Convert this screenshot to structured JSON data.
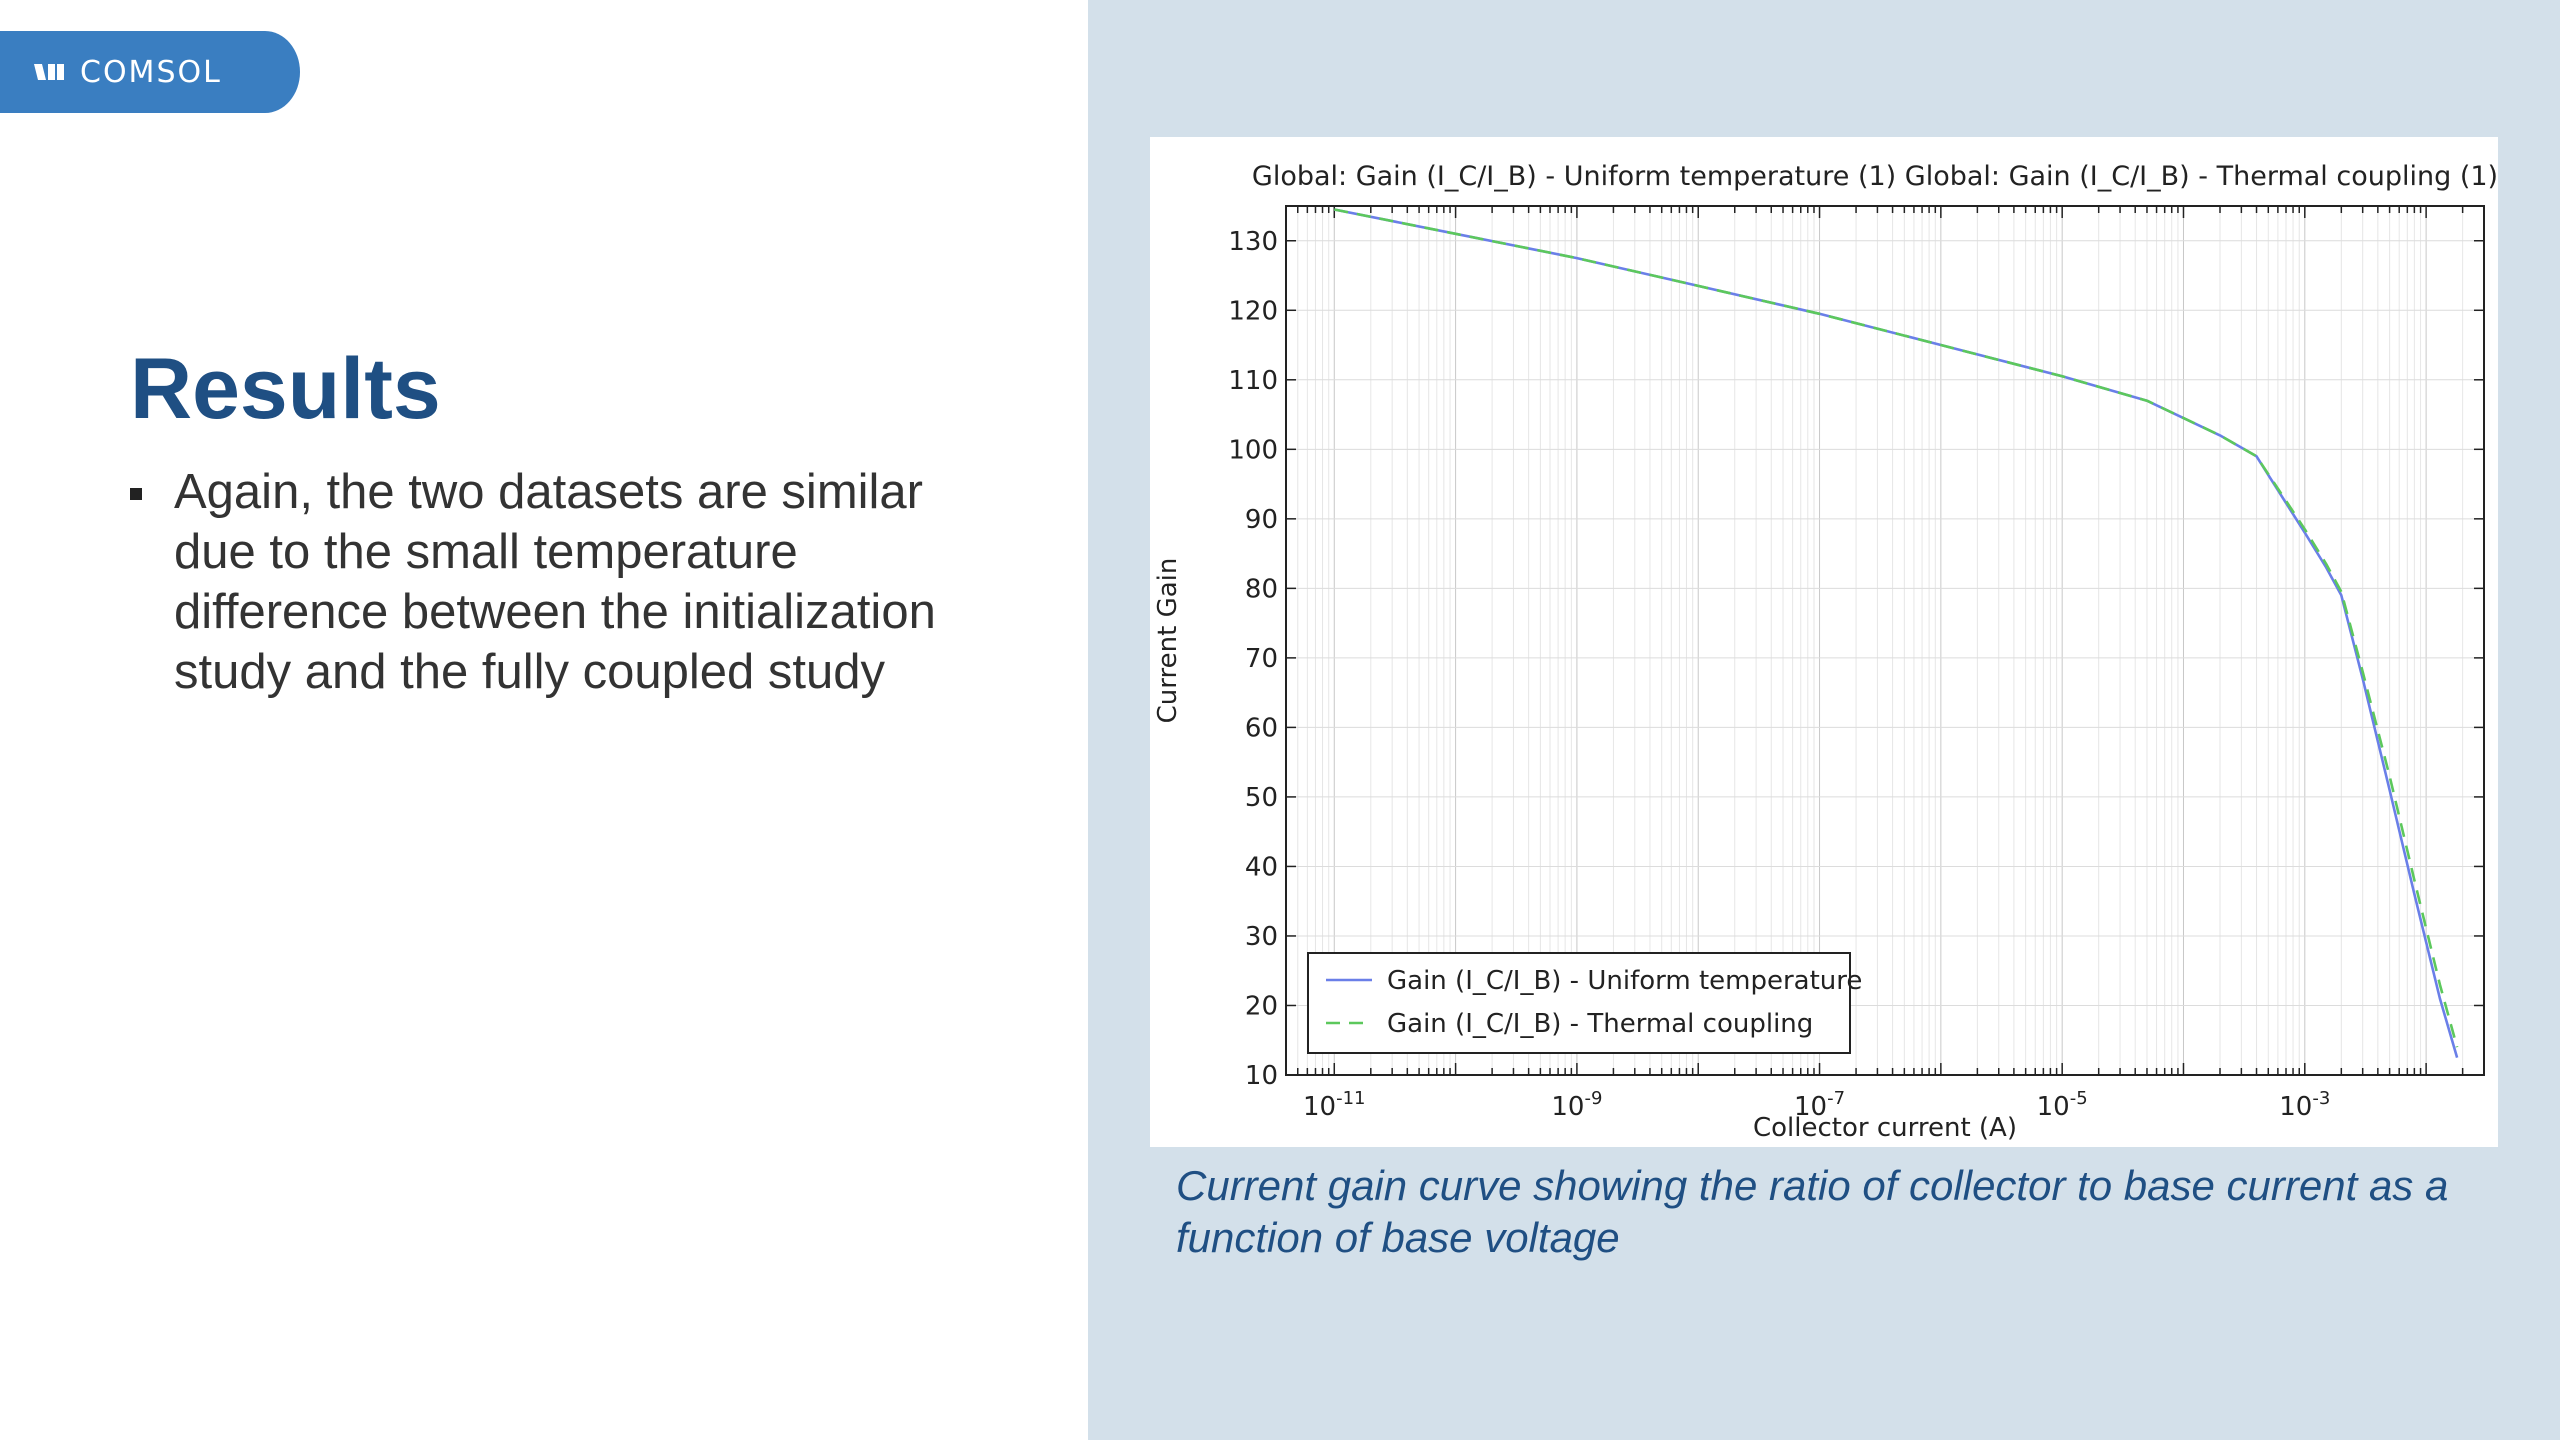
{
  "brand": {
    "name": "COMSOL",
    "color": "#3a7ec1"
  },
  "slide": {
    "title": "Results",
    "bullets": [
      "Again, the two datasets are similar due to the small temperature difference between the initialization study and the fully coupled study"
    ],
    "caption": "Current gain curve showing the ratio of collector to base current as a function of base voltage"
  },
  "chart_data": {
    "type": "line",
    "title": "Global: Gain (I_C/I_B) - Uniform temperature (1)  Global: Gain (I_C/I_B) - Thermal coupling (1)",
    "xlabel": "Collector current (A)",
    "ylabel": "Current Gain",
    "xscale": "log",
    "xlim": [
      4e-12,
      0.03
    ],
    "ylim": [
      10,
      135
    ],
    "grid": true,
    "legend_position": "bottom-left",
    "xticks": [
      {
        "value": 1e-11,
        "base": "10",
        "exp": "-11"
      },
      {
        "value": 1e-09,
        "base": "10",
        "exp": "-9"
      },
      {
        "value": 1e-07,
        "base": "10",
        "exp": "-7"
      },
      {
        "value": 1e-05,
        "base": "10",
        "exp": "-5"
      },
      {
        "value": 0.001,
        "base": "10",
        "exp": "-3"
      }
    ],
    "yticks": [
      10,
      20,
      30,
      40,
      50,
      60,
      70,
      80,
      90,
      100,
      110,
      120,
      130
    ],
    "series": [
      {
        "name": "Gain (I_C/I_B) - Uniform temperature",
        "color": "#6a7fe8",
        "dash": "solid",
        "x": [
          1e-11,
          1e-10,
          1e-09,
          1e-08,
          1e-07,
          1e-06,
          1e-05,
          5e-05,
          0.0002,
          0.0004,
          0.001,
          0.0015,
          0.002,
          0.003,
          0.005,
          0.008,
          0.013,
          0.018
        ],
        "y": [
          134.5,
          131,
          127.5,
          123.5,
          119.5,
          115,
          110.5,
          107,
          102,
          99,
          88,
          83,
          79,
          67,
          51,
          36,
          21,
          12.5
        ]
      },
      {
        "name": "Gain (I_C/I_B) - Thermal coupling",
        "color": "#5cc85c",
        "dash": "dashed",
        "x": [
          1e-11,
          1e-10,
          1e-09,
          1e-08,
          1e-07,
          1e-06,
          1e-05,
          5e-05,
          0.0002,
          0.0004,
          0.001,
          0.0015,
          0.002,
          0.003,
          0.005,
          0.008,
          0.013,
          0.018
        ],
        "y": [
          134.5,
          131,
          127.5,
          123.5,
          119.5,
          115,
          110.5,
          107,
          102,
          99,
          88.5,
          83.5,
          79.5,
          68,
          53,
          38,
          23,
          14
        ]
      }
    ]
  }
}
